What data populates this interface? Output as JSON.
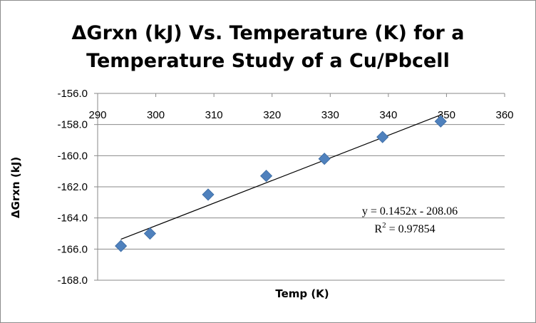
{
  "chart_data": {
    "type": "scatter",
    "title_line1": "ΔGrxn (kJ) Vs. Temperature (K) for a",
    "title_line2": "Temperature Study of a Cu/Pbcell",
    "xlabel": "Temp (K)",
    "ylabel": "ΔGrxn (kJ)",
    "xlim": [
      290,
      360
    ],
    "ylim": [
      -168,
      -156
    ],
    "x_ticks": [
      "290",
      "300",
      "310",
      "320",
      "330",
      "340",
      "350",
      "360"
    ],
    "y_ticks": [
      "-156.0",
      "-158.0",
      "-160.0",
      "-162.0",
      "-164.0",
      "-166.0",
      "-168.0"
    ],
    "x_axis_position": "top",
    "grid": "horizontal",
    "marker": "diamond",
    "marker_color": "#4f81bd",
    "x": [
      294,
      299,
      309,
      319,
      329,
      339,
      349
    ],
    "y": [
      -165.8,
      -165.0,
      -162.5,
      -161.3,
      -160.2,
      -158.8,
      -157.8
    ],
    "trendline": {
      "type": "linear",
      "slope": 0.1452,
      "intercept": -208.06,
      "x_range": [
        294,
        349
      ],
      "equation": "y = 0.1452x - 208.06",
      "r_squared_label": "R",
      "r_squared_sup": "2",
      "r_squared_value": " = 0.97854"
    }
  }
}
